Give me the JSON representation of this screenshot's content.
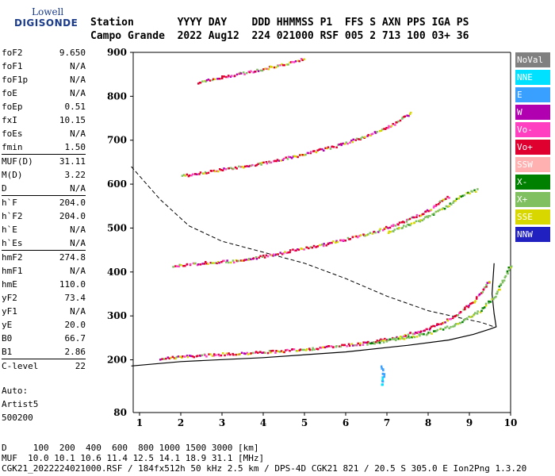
{
  "logo": {
    "line1": "Lowell",
    "line2": "DIGISONDE"
  },
  "header": {
    "line1": "Station       YYYY DAY    DDD HHMMSS P1  FFS S AXN PPS IGA PS",
    "line2": "Campo Grande  2022 Aug12  224 021000 RSF 005 2 713 100 03+ 36"
  },
  "params": [
    {
      "group": [
        {
          "k": "foF2",
          "v": "9.650"
        },
        {
          "k": "foF1",
          "v": "N/A"
        },
        {
          "k": "foF1p",
          "v": "N/A"
        },
        {
          "k": "foE",
          "v": "N/A"
        },
        {
          "k": "foEp",
          "v": "0.51"
        },
        {
          "k": "fxI",
          "v": "10.15"
        },
        {
          "k": "foEs",
          "v": "N/A"
        },
        {
          "k": "fmin",
          "v": "1.50"
        }
      ]
    },
    {
      "group": [
        {
          "k": "MUF(D)",
          "v": "31.11"
        },
        {
          "k": "M(D)",
          "v": "3.22"
        },
        {
          "k": "D",
          "v": "N/A"
        }
      ]
    },
    {
      "group": [
        {
          "k": "h`F",
          "v": "204.0"
        },
        {
          "k": "h`F2",
          "v": "204.0"
        },
        {
          "k": "h`E",
          "v": "N/A"
        },
        {
          "k": "h`Es",
          "v": "N/A"
        }
      ]
    },
    {
      "group": [
        {
          "k": "hmF2",
          "v": "274.8"
        },
        {
          "k": "hmF1",
          "v": "N/A"
        },
        {
          "k": "hmE",
          "v": "110.0"
        },
        {
          "k": "yF2",
          "v": "73.4"
        },
        {
          "k": "yF1",
          "v": "N/A"
        },
        {
          "k": "yE",
          "v": "20.0"
        },
        {
          "k": "B0",
          "v": "66.7"
        },
        {
          "k": "B1",
          "v": "2.86"
        }
      ]
    },
    {
      "group": [
        {
          "k": "C-level",
          "v": "22"
        }
      ]
    }
  ],
  "auto": {
    "line1": "Auto:",
    "line2": "Artist5",
    "line3": "500200"
  },
  "legend": [
    {
      "label": "NoVal",
      "color": "#808080"
    },
    {
      "label": "NNE",
      "color": "#00e0ff"
    },
    {
      "label": "E",
      "color": "#3aa0ff"
    },
    {
      "label": "W",
      "color": "#b000b0"
    },
    {
      "label": "Vo-",
      "color": "#ff40c0"
    },
    {
      "label": "Vo+",
      "color": "#e00030"
    },
    {
      "label": "SSW",
      "color": "#ffb0b0"
    },
    {
      "label": "X-",
      "color": "#008000"
    },
    {
      "label": "X+",
      "color": "#80c060"
    },
    {
      "label": "SSE",
      "color": "#d8d800"
    },
    {
      "label": "NNW",
      "color": "#2020c0"
    }
  ],
  "footer": {
    "line1": "D     100  200  400  600  800 1000 1500 3000 [km]",
    "line2": "MUF  10.0 10.1 10.6 11.4 12.5 14.1 18.9 31.1 [MHz]",
    "line3": "CGK21_2022224021000.RSF / 184fx512h 50 kHz 2.5 km / DPS-4D CGK21 821 / 20.5 S 305.0 E Ion2Png 1.3.20"
  },
  "chart_data": {
    "type": "scatter",
    "xlim": [
      0.8,
      10.0
    ],
    "ylim": [
      80,
      900
    ],
    "x_ticks": [
      1,
      2,
      3,
      4,
      5,
      6,
      7,
      8,
      9,
      10
    ],
    "y_ticks": [
      200,
      300,
      400,
      500,
      600,
      700,
      800,
      900
    ],
    "y_ticks_bottom": [
      80
    ],
    "grid": false,
    "legend_placement": "right",
    "traces": [
      {
        "mode": "o+",
        "points": [
          [
            1.5,
            205
          ],
          [
            2.5,
            212
          ],
          [
            3.5,
            217
          ],
          [
            4.5,
            222
          ],
          [
            5.5,
            230
          ],
          [
            6.5,
            240
          ],
          [
            7.3,
            255
          ],
          [
            8.0,
            272
          ],
          [
            8.6,
            300
          ],
          [
            9.1,
            335
          ],
          [
            9.5,
            385
          ]
        ]
      },
      {
        "mode": "x+",
        "points": [
          [
            6.5,
            238
          ],
          [
            7.3,
            250
          ],
          [
            8.0,
            262
          ],
          [
            8.6,
            280
          ],
          [
            9.2,
            310
          ],
          [
            9.6,
            345
          ],
          [
            10.0,
            420
          ]
        ]
      },
      {
        "mode": "o+",
        "points": [
          [
            1.8,
            415
          ],
          [
            2.5,
            422
          ],
          [
            3.5,
            428
          ],
          [
            4.5,
            447
          ],
          [
            5.5,
            465
          ],
          [
            6.5,
            488
          ],
          [
            7.3,
            512
          ],
          [
            8.0,
            542
          ],
          [
            8.5,
            575
          ]
        ]
      },
      {
        "mode": "x+",
        "points": [
          [
            7.0,
            492
          ],
          [
            7.8,
            520
          ],
          [
            8.4,
            550
          ],
          [
            8.9,
            580
          ],
          [
            9.2,
            590
          ]
        ]
      },
      {
        "mode": "o+",
        "points": [
          [
            2.0,
            620
          ],
          [
            3.0,
            635
          ],
          [
            4.0,
            650
          ],
          [
            5.0,
            670
          ],
          [
            6.0,
            695
          ],
          [
            7.0,
            730
          ],
          [
            7.6,
            765
          ]
        ]
      },
      {
        "mode": "o+",
        "points": [
          [
            2.4,
            832
          ],
          [
            3.0,
            845
          ],
          [
            3.8,
            860
          ],
          [
            4.5,
            875
          ],
          [
            5.0,
            888
          ]
        ]
      },
      {
        "mode": "nne",
        "points": [
          [
            6.85,
            145
          ],
          [
            6.9,
            170
          ],
          [
            6.85,
            190
          ]
        ]
      }
    ],
    "profile": [
      [
        0.8,
        186
      ],
      [
        2.0,
        196
      ],
      [
        4.0,
        205
      ],
      [
        6.0,
        218
      ],
      [
        7.5,
        233
      ],
      [
        8.5,
        245
      ],
      [
        9.1,
        258
      ],
      [
        9.5,
        270
      ],
      [
        9.65,
        275
      ],
      [
        9.6,
        305
      ],
      [
        9.55,
        350
      ],
      [
        9.6,
        420
      ]
    ],
    "dashed_curve": [
      [
        0.8,
        640
      ],
      [
        1.5,
        565
      ],
      [
        2.2,
        505
      ],
      [
        3.0,
        470
      ],
      [
        4.0,
        445
      ],
      [
        5.0,
        420
      ],
      [
        6.0,
        385
      ],
      [
        7.0,
        345
      ],
      [
        8.0,
        312
      ],
      [
        8.8,
        295
      ],
      [
        9.3,
        285
      ],
      [
        9.6,
        275
      ]
    ]
  }
}
